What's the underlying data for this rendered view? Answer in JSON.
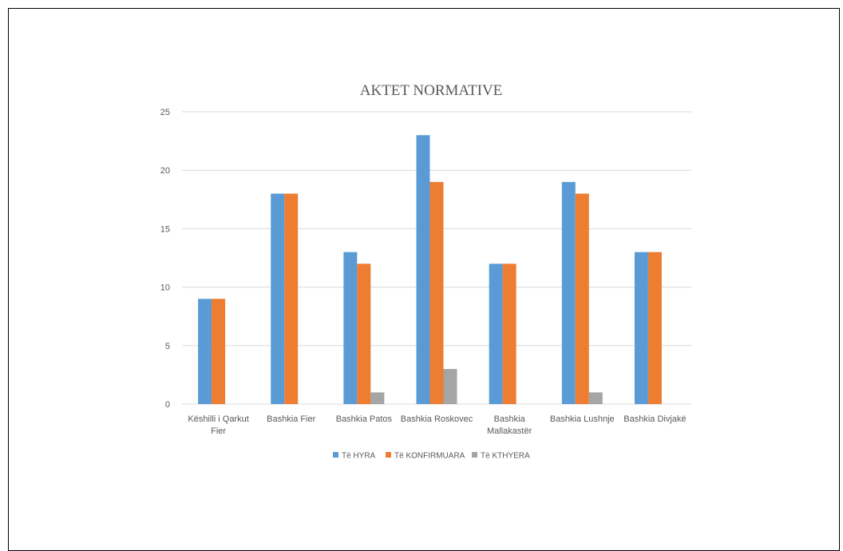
{
  "chart_data": {
    "type": "bar",
    "title": "AKTET NORMATIVE",
    "categories": [
      [
        "Këshilli i Qarkut",
        "Fier"
      ],
      [
        "Bashkia Fier"
      ],
      [
        "Bashkia Patos"
      ],
      [
        "Bashkia Roskovec"
      ],
      [
        "Bashkia",
        "Mallakastër"
      ],
      [
        "Bashkia Lushnje"
      ],
      [
        "Bashkia Divjakë"
      ]
    ],
    "series": [
      {
        "name": "Të HYRA",
        "color": "#5b9bd5",
        "values": [
          9,
          18,
          13,
          23,
          12,
          19,
          13
        ]
      },
      {
        "name": "Të KONFIRMUARA",
        "color": "#ed7d31",
        "values": [
          9,
          18,
          12,
          19,
          12,
          18,
          13
        ]
      },
      {
        "name": "Të KTHYERA",
        "color": "#a5a5a5",
        "values": [
          0,
          0,
          1,
          3,
          0,
          1,
          0
        ]
      }
    ],
    "ylim": [
      0,
      25
    ],
    "yticks": [
      0,
      5,
      10,
      15,
      20,
      25
    ],
    "grid": true,
    "legend_position": "bottom"
  }
}
